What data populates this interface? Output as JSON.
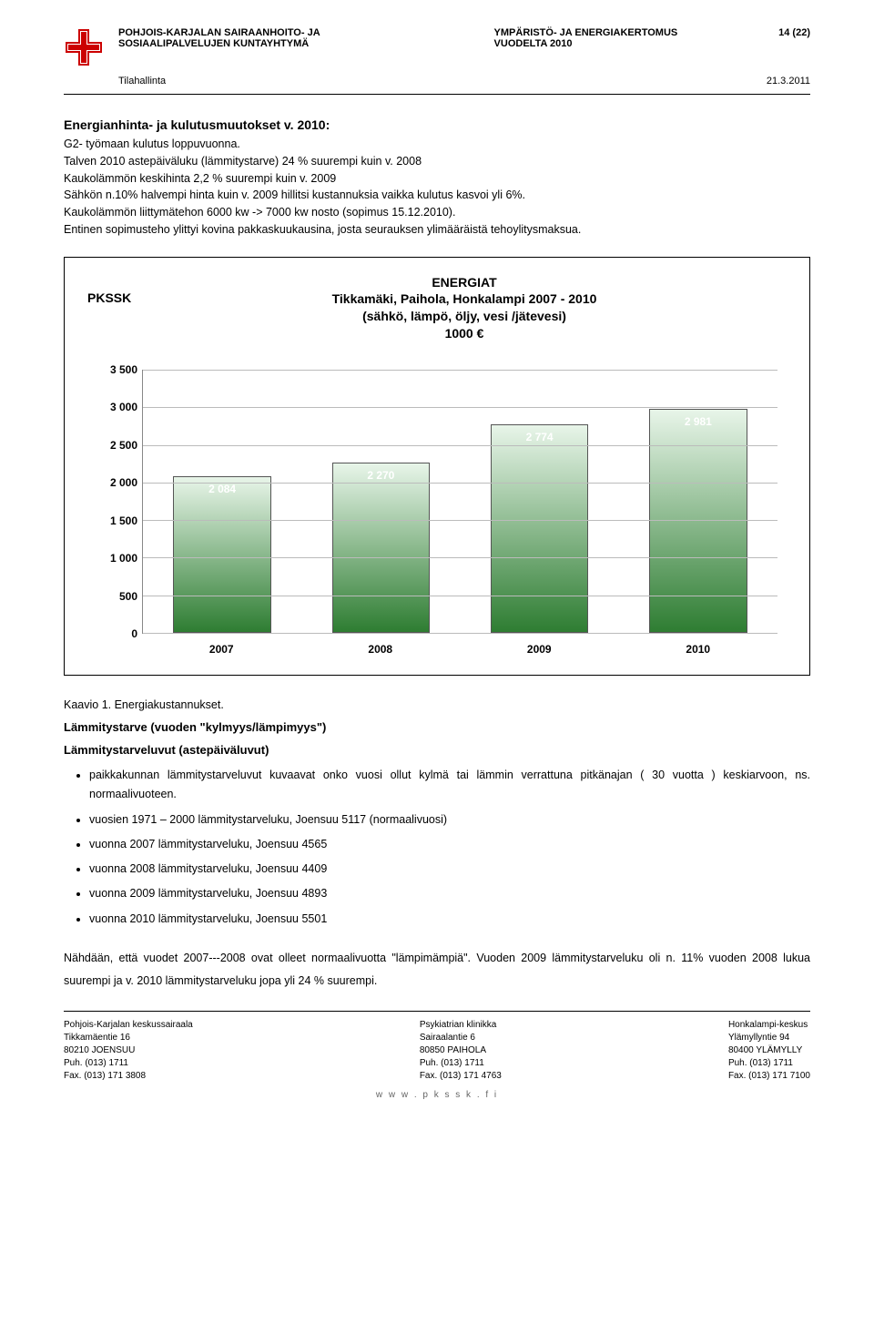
{
  "header": {
    "org1": "POHJOIS-KARJALAN SAIRAANHOITO- JA",
    "org2": "SOSIAALIPALVELUJEN KUNTAYHTYMÄ",
    "report1": "YMPÄRISTÖ- JA ENERGIAKERTOMUS",
    "report2": "VUODELTA 2010",
    "page": "14 (22)",
    "dept": "Tilahallinta",
    "date": "21.3.2011"
  },
  "section_title": "Energianhinta- ja kulutusmuutokset v. 2010:",
  "body_text": "G2- työmaan kulutus loppuvuonna.\nTalven 2010 astepäiväluku (lämmitystarve) 24 % suurempi kuin v. 2008\nKaukolämmön keskihinta 2,2 % suurempi kuin v. 2009\nSähkön n.10% halvempi hinta kuin v. 2009 hillitsi kustannuksia vaikka kulutus kasvoi yli 6%.\nKaukolämmön liittymätehon 6000 kw -> 7000 kw nosto (sopimus 15.12.2010).\nEntinen sopimusteho ylittyi kovina pakkaskuukausina, josta seurauksen ylimääräistä tehoylitysmaksua.",
  "chart": {
    "type": "bar",
    "org_label": "PKSSK",
    "title_l1": "ENERGIAT",
    "title_l2": "Tikkamäki, Paihola, Honkalampi 2007 - 2010",
    "title_l3": "(sähkö, lämpö, öljy, vesi /jätevesi)",
    "title_l4": "1000 €",
    "categories": [
      "2007",
      "2008",
      "2009",
      "2010"
    ],
    "values": [
      2084,
      2270,
      2774,
      2981
    ],
    "value_labels": [
      "2 084",
      "2 270",
      "2 774",
      "2 981"
    ],
    "ylim": [
      0,
      3500
    ],
    "ytick_step": 500,
    "yticks": [
      "0",
      "500",
      "1 000",
      "1 500",
      "2 000",
      "2 500",
      "3 000",
      "3 500"
    ],
    "bar_gradient_top": "#e8f5e9",
    "bar_gradient_bottom": "#2e7d32",
    "grid_color": "#bbbbbb",
    "label_color": "#ffffff",
    "title_fontsize": 14
  },
  "caption": "Kaavio 1. Energiakustannukset.",
  "sub1": "Lämmitystarve (vuoden \"kylmyys/lämpimyys\")",
  "sub2": "Lämmitystarveluvut (astepäiväluvut)",
  "bullets": [
    "paikkakunnan lämmitystarveluvut kuvaavat onko vuosi ollut kylmä tai lämmin verrattuna pitkänajan ( 30 vuotta ) keskiarvoon, ns. normaalivuoteen.",
    "vuosien 1971 – 2000 lämmitystarveluku, Joensuu 5117 (normaalivuosi)",
    "vuonna 2007 lämmitystarveluku, Joensuu 4565",
    "vuonna 2008 lämmitystarveluku, Joensuu 4409",
    "vuonna 2009 lämmitystarveluku, Joensuu 4893",
    "vuonna 2010 lämmitystarveluku, Joensuu 5501"
  ],
  "para": "Nähdään, että vuodet 2007---2008 ovat olleet normaalivuotta \"lämpimämpiä\". Vuoden 2009 lämmitystarveluku oli n. 11% vuoden 2008 lukua suurempi ja v. 2010 lämmitystarveluku jopa yli 24 % suurempi.",
  "footer": {
    "col1": [
      "Pohjois-Karjalan keskussairaala",
      "Tikkamäentie 16",
      "80210 JOENSUU",
      "Puh. (013) 1711",
      "Fax. (013) 171 3808"
    ],
    "col2": [
      "Psykiatrian klinikka",
      "Sairaalantie 6",
      "80850 PAIHOLA",
      "Puh. (013) 1711",
      "Fax. (013) 171 4763"
    ],
    "col3": [
      "Honkalampi-keskus",
      "Ylämyllyntie 94",
      "80400 YLÄMYLLY",
      "Puh. (013) 1711",
      "Fax. (013) 171 7100"
    ],
    "url": "w w w . p k s s k . f i"
  }
}
